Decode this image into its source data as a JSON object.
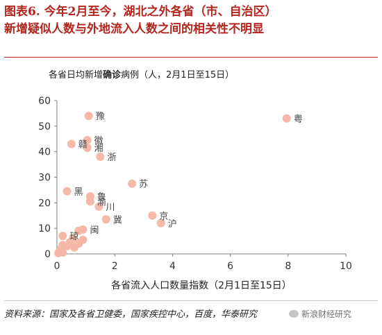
{
  "figure": {
    "title_line1": "图表6. 今年2月至今，湖北之外各省（市、自治区）",
    "title_line2": "新增疑似人数与外地流入人数之间的相关性不明显",
    "subtitle_pre": "各省日均新增",
    "subtitle_bold": "确诊",
    "subtitle_post": "病例（人，2月1日至15日）",
    "xlabel": "各省流入人口数量指数（2月1日至15日）",
    "source": "资料来源：国家及各省卫健委，国家疾控中心，百度，华泰研究",
    "watermark": "新浪财经研究"
  },
  "colors": {
    "title": "#b3261e",
    "marker": "#f5b9a8",
    "axis": "#7f7f7f",
    "text": "#333333"
  },
  "chart_data": {
    "type": "scatter",
    "xlim": [
      0,
      10
    ],
    "ylim": [
      0,
      60
    ],
    "xticks": [
      0,
      2,
      4,
      6,
      8,
      10
    ],
    "yticks": [
      0,
      10,
      20,
      30,
      40,
      50,
      60
    ],
    "grid": false,
    "points": [
      {
        "x": 1.1,
        "y": 54,
        "label": "豫"
      },
      {
        "x": 7.95,
        "y": 53,
        "label": "粤"
      },
      {
        "x": 1.05,
        "y": 44.5,
        "label": "徽"
      },
      {
        "x": 0.5,
        "y": 43,
        "label": "赣"
      },
      {
        "x": 1.05,
        "y": 41.5,
        "label": "湘"
      },
      {
        "x": 1.5,
        "y": 38,
        "label": "浙"
      },
      {
        "x": 2.6,
        "y": 27.5,
        "label": "苏"
      },
      {
        "x": 0.35,
        "y": 24.5,
        "label": "黑"
      },
      {
        "x": 1.15,
        "y": 22.5,
        "label": "鲁"
      },
      {
        "x": 1.15,
        "y": 20.5,
        "label": "渝"
      },
      {
        "x": 1.45,
        "y": 18.5,
        "label": "川"
      },
      {
        "x": 3.3,
        "y": 15,
        "label": "京"
      },
      {
        "x": 1.7,
        "y": 13.5,
        "label": "冀"
      },
      {
        "x": 3.6,
        "y": 12,
        "label": "沪"
      },
      {
        "x": 0.9,
        "y": 9.5,
        "label": "闽"
      },
      {
        "x": 0.75,
        "y": 9,
        "label": ""
      },
      {
        "x": 0.2,
        "y": 7,
        "label": "琼"
      },
      {
        "x": 0.55,
        "y": 6,
        "label": ""
      },
      {
        "x": 0.9,
        "y": 5.5,
        "label": ""
      },
      {
        "x": 0.45,
        "y": 4.5,
        "label": ""
      },
      {
        "x": 0.75,
        "y": 4,
        "label": ""
      },
      {
        "x": 0.2,
        "y": 3.5,
        "label": ""
      },
      {
        "x": 0.35,
        "y": 3,
        "label": ""
      },
      {
        "x": 0.6,
        "y": 2.5,
        "label": ""
      },
      {
        "x": 0.15,
        "y": 2,
        "label": ""
      },
      {
        "x": 0.1,
        "y": 1,
        "label": ""
      },
      {
        "x": 0.2,
        "y": 0.5,
        "label": ""
      },
      {
        "x": 0.05,
        "y": 0.3,
        "label": ""
      }
    ]
  }
}
